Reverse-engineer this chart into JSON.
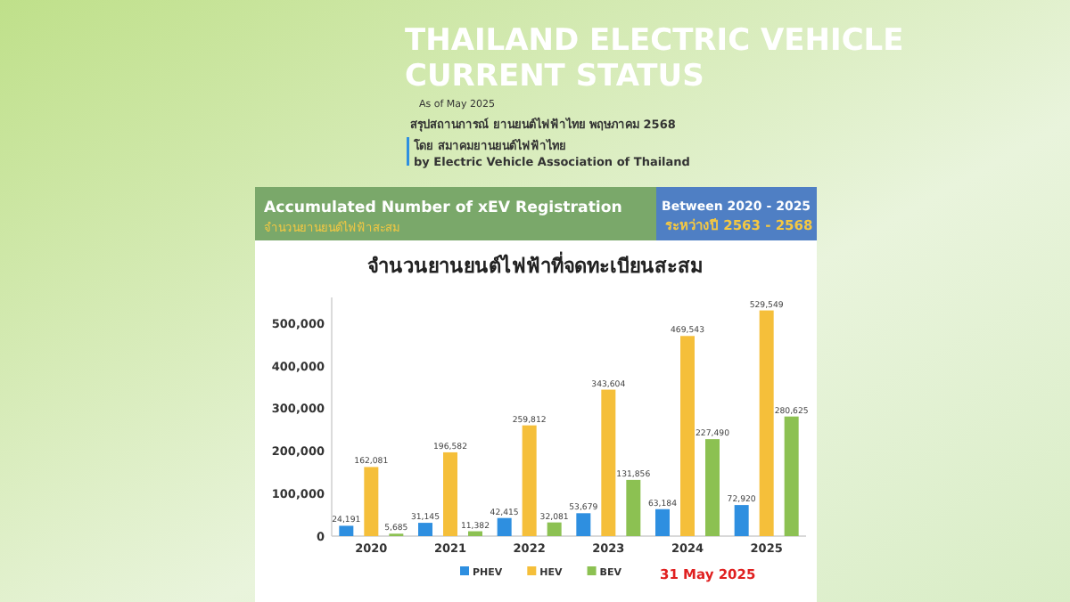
{
  "chart_data": {
    "type": "bar",
    "title": "จำนวนยานยนต์ไฟฟ้าที่จดทะเบียนสะสม",
    "annotations": [
      "THAILAND ELECTRIC VEHICLE",
      "CURRENT STATUS",
      "As of May 2025",
      "สรุปสถานการณ์ ยานยนต์ไฟฟ้าไทย พฤษภาคม 2568",
      "โดย สมาคมยานยนต์ไฟฟ้าไทย",
      "by Electric Vehicle Association of Thailand",
      "Accumulated Number of xEV Registration",
      "จำนวนยานยนต์ไฟฟ้าสะสม",
      "Between 2020 - 2025",
      "ระหว่างปี 2563 - 2568",
      "31 May 2025"
    ],
    "categories": [
      "2020",
      "2021",
      "2022",
      "2023",
      "2024",
      "2025"
    ],
    "series": [
      {
        "name": "PHEV",
        "color": "#2e8fe0",
        "values": [
          24191,
          31145,
          42415,
          53679,
          63184,
          72920
        ],
        "value_labels": [
          "24,191",
          "31,145",
          "42,415",
          "53,679",
          "63,184",
          "72,920"
        ]
      },
      {
        "name": "HEV",
        "color": "#f5bf3a",
        "values": [
          162081,
          196582,
          259812,
          343604,
          469543,
          529549
        ],
        "value_labels": [
          "162,081",
          "196,582",
          "259,812",
          "343,604",
          "469,543",
          "529,549"
        ]
      },
      {
        "name": "BEV",
        "color": "#8cc152",
        "values": [
          5685,
          11382,
          32081,
          131856,
          227490,
          280625
        ],
        "value_labels": [
          "5,685",
          "11,382",
          "32,081",
          "131,856",
          "227,490",
          "280,625"
        ]
      }
    ],
    "ylim": [
      0,
      560000
    ],
    "yticks": [
      0,
      {
        "value": 100000,
        "label": "100,000"
      },
      {
        "value": 200000,
        "label": "200,000"
      },
      {
        "value": 300000,
        "label": "300,000"
      },
      {
        "value": 400000,
        "label": "400,000"
      },
      {
        "value": 500000,
        "label": "500,000"
      }
    ],
    "legend": "bottom",
    "grid": false
  }
}
